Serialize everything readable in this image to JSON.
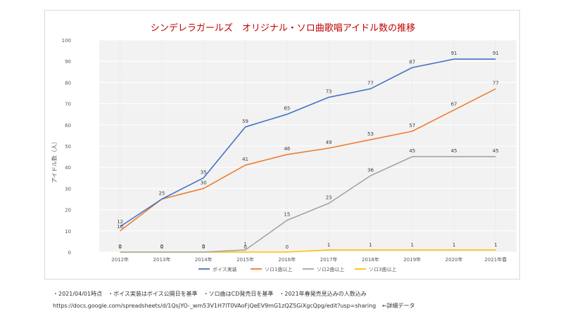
{
  "notes": "・2021/04/01時点　・ボイス実装はボイス公開日を基準　・ソロ曲はCD発売日を基準　・2021年春発売見込みの人数込み",
  "link": {
    "url": "https://docs.google.com/spreadsheets/d/1QsjYO-_wm53V1H7lT0VAoFjQeEV9mG1zQZ5GiXgcQpg/edit?usp=sharing",
    "label": "←詳細データ"
  },
  "chart_data": {
    "type": "line",
    "title": "シンデレラガールズ　オリジナル・ソロ曲歌唱アイドル数の推移",
    "xlabel": "",
    "ylabel": "アイドル数（人）",
    "ylim": [
      0,
      100
    ],
    "yticks": [
      "0",
      "10",
      "20",
      "30",
      "40",
      "50",
      "60",
      "70",
      "80",
      "90",
      "100"
    ],
    "categories": [
      "2012年",
      "2013年",
      "2014年",
      "2015年",
      "2016年",
      "2017年",
      "2018年",
      "2019年",
      "2020年",
      "2021年春"
    ],
    "grid": true,
    "legend_position": "bottom",
    "series": [
      {
        "name": "ボイス実装",
        "color": "#4472c4",
        "values": [
          12,
          25,
          35,
          59,
          65,
          73,
          77,
          87,
          91,
          91
        ]
      },
      {
        "name": "ソロ1曲以上",
        "color": "#ed7d31",
        "values": [
          10,
          25,
          30,
          41,
          46,
          49,
          53,
          57,
          67,
          77
        ]
      },
      {
        "name": "ソロ2曲以上",
        "color": "#a5a5a5",
        "values": [
          0,
          0,
          0,
          1,
          15,
          23,
          36,
          45,
          45,
          45
        ]
      },
      {
        "name": "ソロ3曲以上",
        "color": "#ffc000",
        "values": [
          0,
          0,
          0,
          0,
          0,
          1,
          1,
          1,
          1,
          1
        ]
      }
    ],
    "title_color": "#c00000",
    "plot_background": "#f2f2f2"
  }
}
